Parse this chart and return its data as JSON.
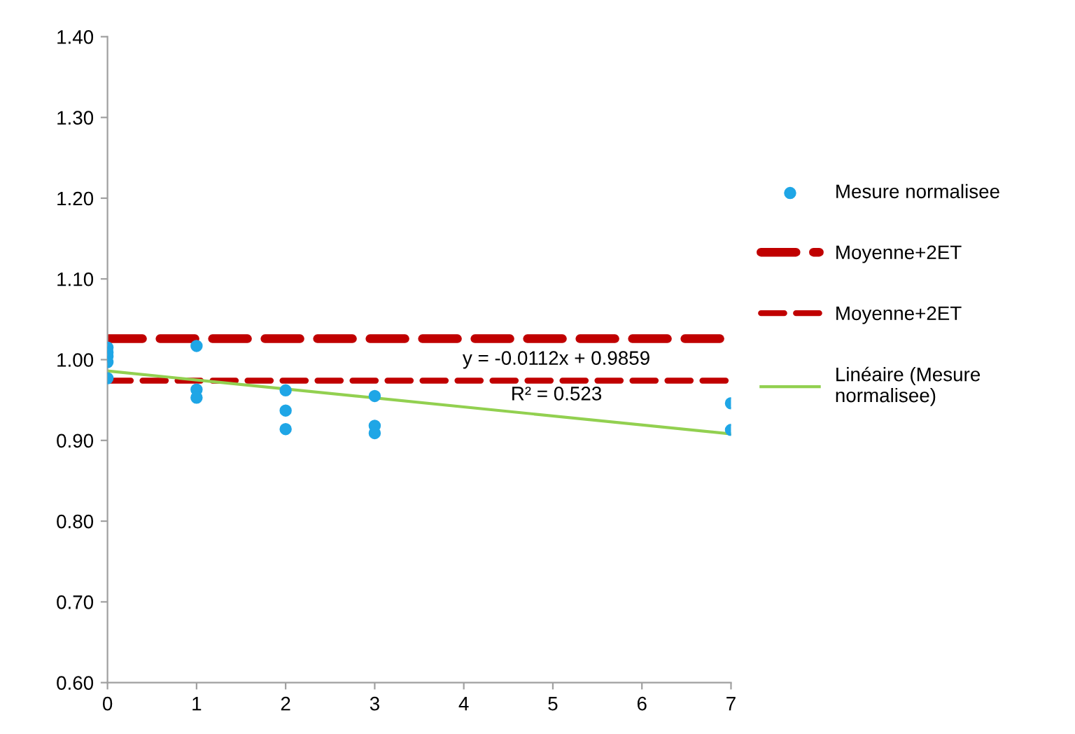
{
  "chart_data": {
    "type": "scatter",
    "xlim": [
      0,
      7
    ],
    "xticks": [
      0,
      1,
      2,
      3,
      4,
      5,
      6,
      7
    ],
    "ylim": [
      0.6,
      1.4
    ],
    "yticks": [
      {
        "value": 0.6,
        "label": "0.60"
      },
      {
        "value": 0.7,
        "label": "0.70"
      },
      {
        "value": 0.8,
        "label": "0.80"
      },
      {
        "value": 0.9,
        "label": "0.90"
      },
      {
        "value": 1.0,
        "label": "1.00"
      },
      {
        "value": 1.1,
        "label": "1.10"
      },
      {
        "value": 1.2,
        "label": "1.20"
      },
      {
        "value": 1.3,
        "label": "1.30"
      },
      {
        "value": 1.4,
        "label": "1.40"
      }
    ],
    "grid": false,
    "legend": "right",
    "annotations": [
      "y = -0.0112x + 0.9859",
      "R² = 0.523"
    ],
    "series": [
      {
        "name": "Mesure normalisee",
        "marker": "circle",
        "color": "#1fa6e6",
        "x": [
          0,
          0,
          0,
          0,
          0,
          1,
          1,
          1,
          2,
          2,
          2,
          3,
          3,
          3,
          7,
          7
        ],
        "values": [
          1.015,
          1.009,
          1.004,
          0.997,
          0.977,
          1.017,
          0.963,
          0.953,
          0.962,
          0.937,
          0.914,
          0.955,
          0.918,
          0.909,
          0.946,
          0.913
        ]
      },
      {
        "name": "Moyenne+2ET",
        "type": "line",
        "line_style": "dashed",
        "color": "#c00000",
        "x": [
          0,
          7
        ],
        "values": [
          1.026,
          1.026
        ]
      },
      {
        "name": "Moyenne+2ET",
        "type": "line",
        "line_style": "dashed",
        "color": "#c00000",
        "x": [
          0,
          7
        ],
        "values": [
          0.974,
          0.974
        ]
      },
      {
        "name": "Linéaire (Mesure\nnormalisee)",
        "type": "line",
        "line_style": "solid",
        "color": "#92d050",
        "x": [
          0,
          7
        ],
        "values": [
          0.986,
          0.908
        ]
      }
    ]
  }
}
